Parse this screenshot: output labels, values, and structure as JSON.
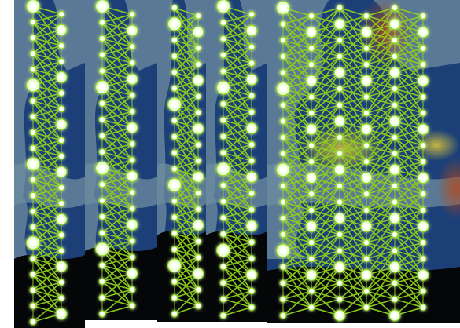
{
  "image": {
    "panel_count": 5,
    "colors": {
      "edge_green": "#8fd11a",
      "node_glow": "#e9ffd0",
      "node_core": "#ffffff",
      "map_water": "#1c3f78",
      "map_land": "#6e8da0",
      "map_dark": "#050608",
      "heat_yellow": "#d6c23a",
      "heat_red": "#b34a1c",
      "background": "#ffffff"
    },
    "panels": [
      {
        "variant": "narrow",
        "columns": 2
      },
      {
        "variant": "narrow",
        "columns": 2
      },
      {
        "variant": "narrow",
        "columns": 2
      },
      {
        "variant": "narrow",
        "columns": 2
      },
      {
        "variant": "wide",
        "columns": 6
      }
    ]
  }
}
